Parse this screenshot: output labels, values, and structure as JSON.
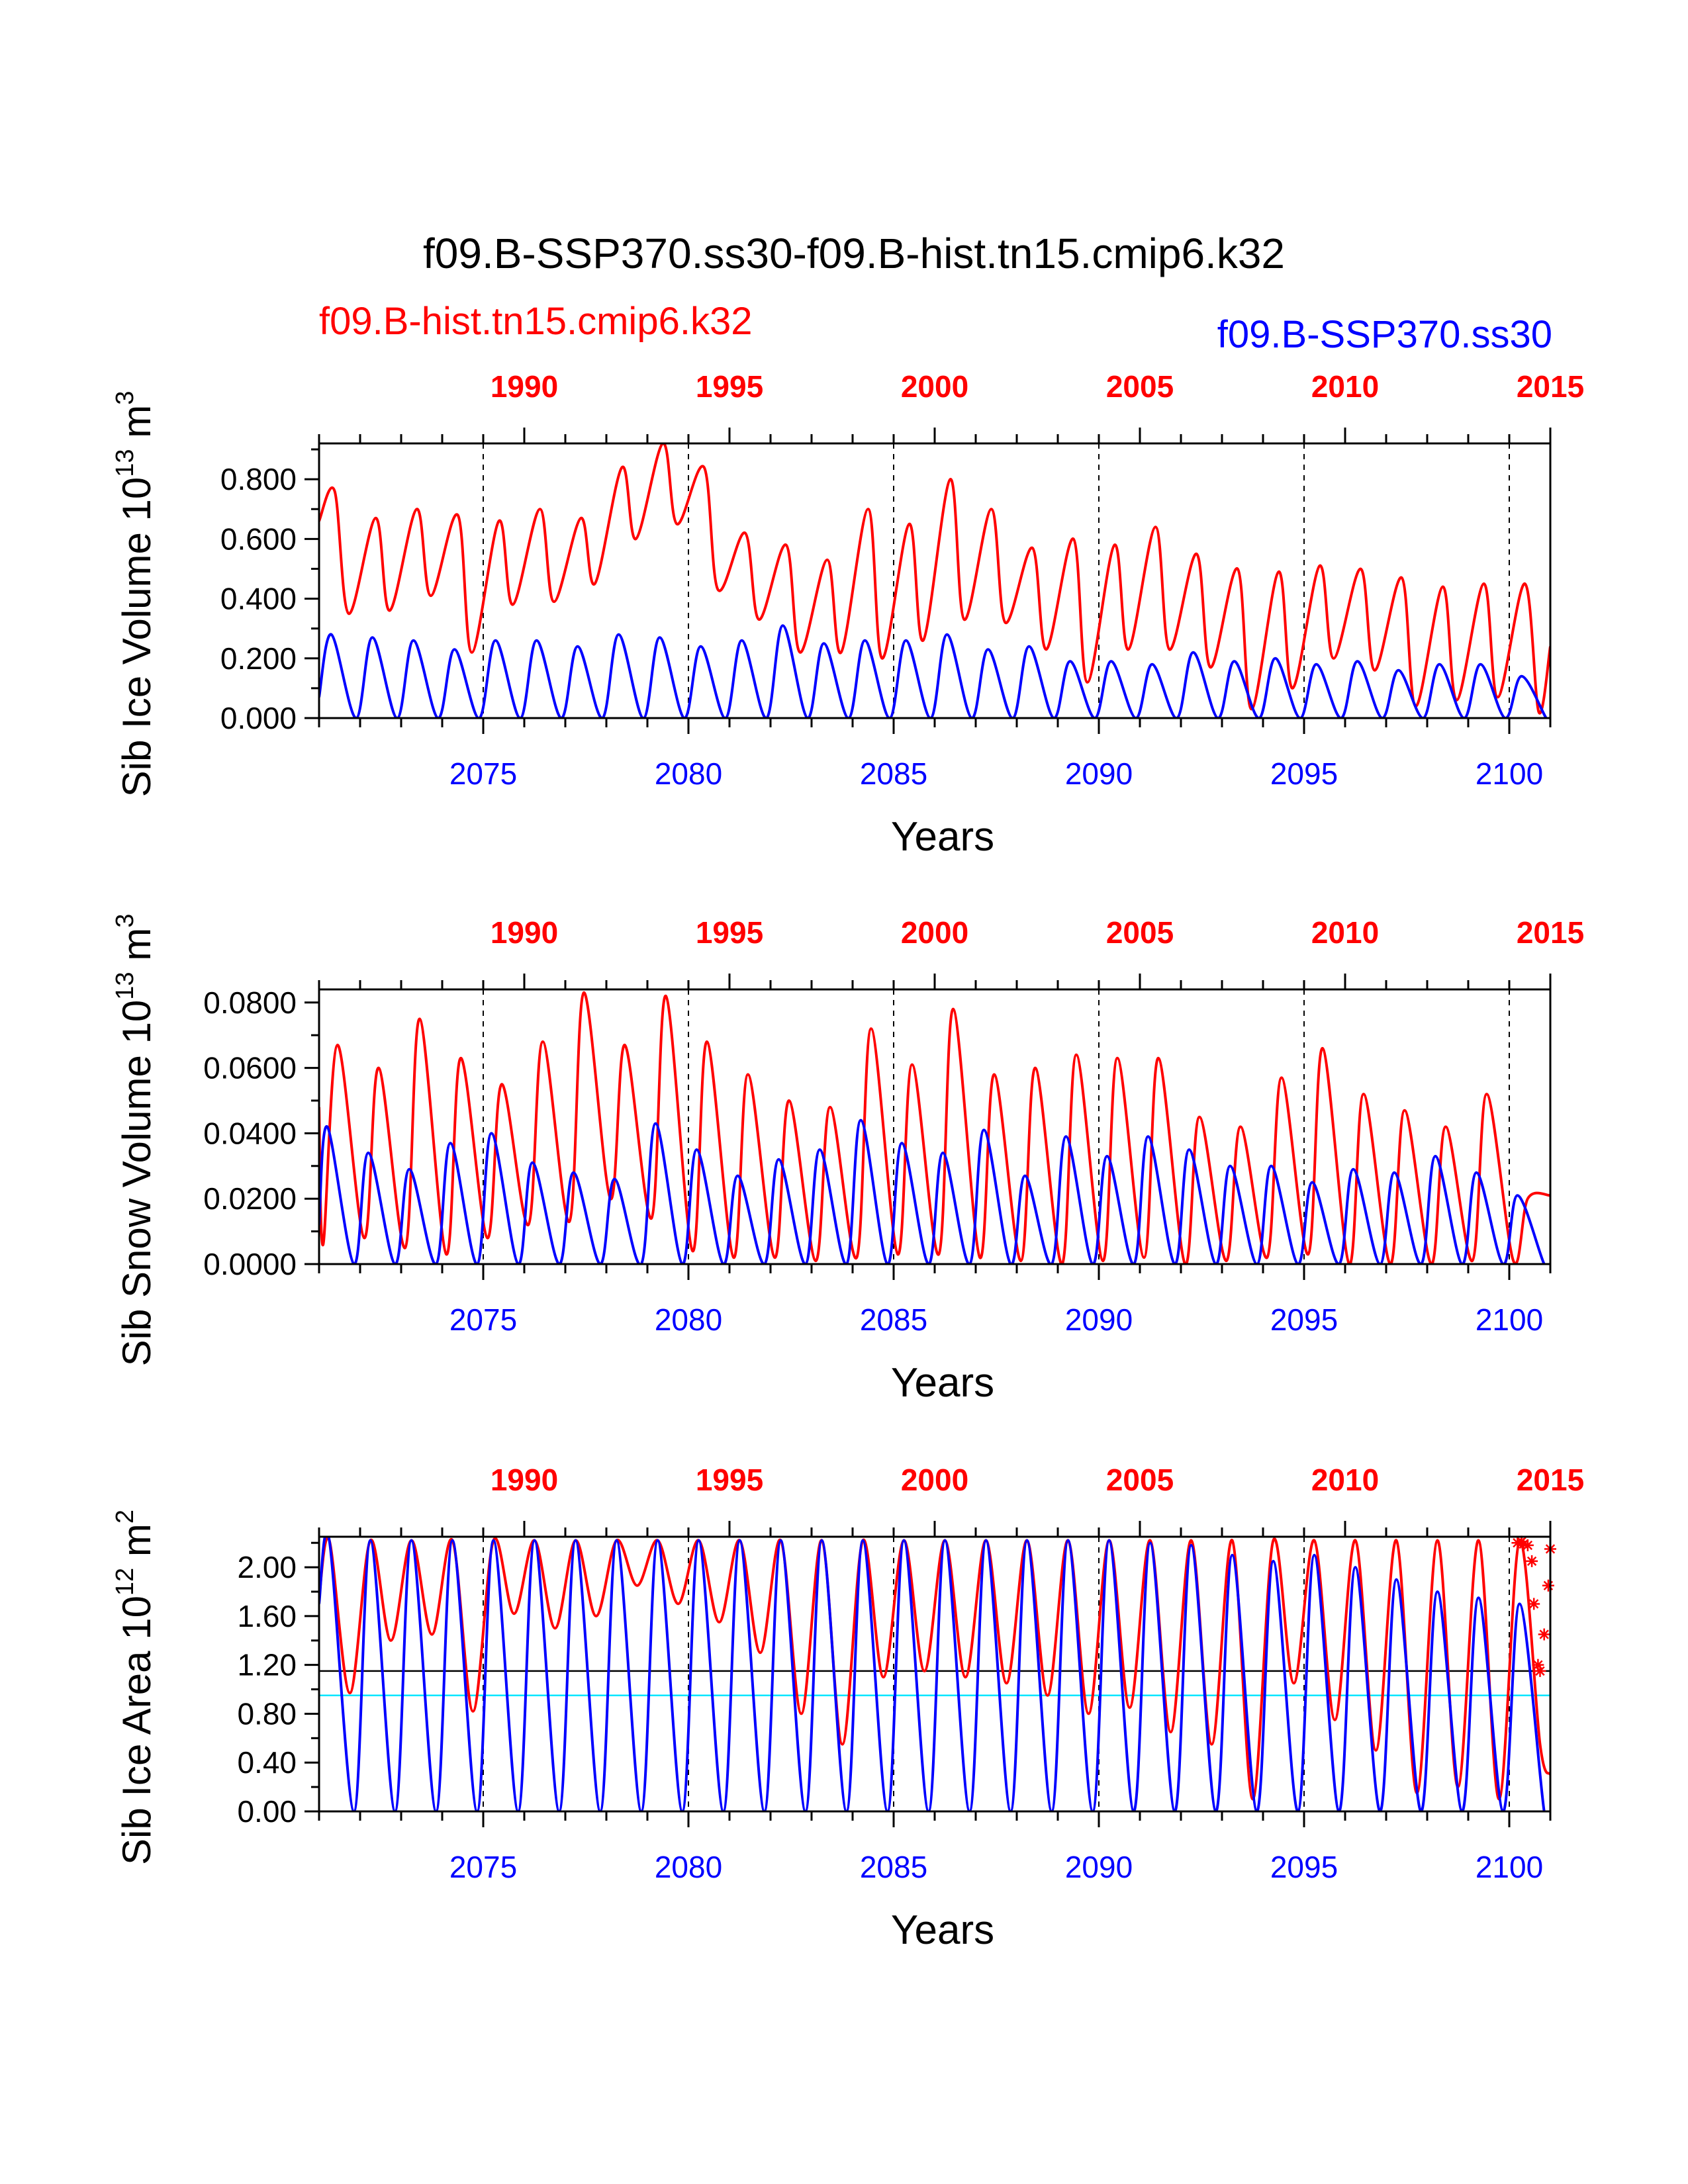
{
  "title": "f09.B-SSP370.ss30-f09.B-hist.tn15.cmip6.k32",
  "legend": {
    "left": {
      "label": "f09.B-hist.tn15.cmip6.k32",
      "color": "#ff0000"
    },
    "right": {
      "label": "f09.B-SSP370.ss30",
      "color": "#0000ff"
    }
  },
  "colors": {
    "hist": "#ff0000",
    "ssp": "#0000ff",
    "ref": "#00e5ff",
    "axis": "#000000"
  },
  "chart_data": [
    {
      "type": "line",
      "id": "ice-volume",
      "ylabel": "Sib Ice Volume 10",
      "ylabel_exp": "13",
      "ylabel_unit": " m",
      "ylabel_unit_exp": "3",
      "xlabel": "Years",
      "xlim": [
        2071,
        2101
      ],
      "ylim": [
        0,
        0.92
      ],
      "yticks": [
        0,
        0.2,
        0.4,
        0.6,
        0.8
      ],
      "yticklabels": [
        "0.000",
        "0.200",
        "0.400",
        "0.600",
        "0.800"
      ],
      "bottom_ticks": [
        2075,
        2080,
        2085,
        2090,
        2095,
        2100
      ],
      "top_ticks": [
        {
          "label": "1990",
          "x": 2076
        },
        {
          "label": "1995",
          "x": 2081
        },
        {
          "label": "2000",
          "x": 2086
        },
        {
          "label": "2005",
          "x": 2091
        },
        {
          "label": "2010",
          "x": 2096
        },
        {
          "label": "2015",
          "x": 2101
        }
      ],
      "dashed_x": [
        2075,
        2080,
        2085,
        2090,
        2095,
        2100
      ],
      "series": [
        {
          "key": "hist",
          "max": [
            0.76,
            0.67,
            0.7,
            0.68,
            0.66,
            0.7,
            0.67,
            0.84,
            0.92,
            0.84,
            0.62,
            0.58,
            0.53,
            0.7,
            0.65,
            0.8,
            0.7,
            0.57,
            0.6,
            0.58,
            0.64,
            0.55,
            0.5,
            0.49,
            0.51,
            0.5,
            0.47,
            0.44,
            0.45,
            0.45
          ],
          "min": [
            0.35,
            0.36,
            0.41,
            0.22,
            0.38,
            0.39,
            0.45,
            0.6,
            0.65,
            0.43,
            0.33,
            0.22,
            0.22,
            0.2,
            0.26,
            0.33,
            0.32,
            0.23,
            0.12,
            0.23,
            0.23,
            0.17,
            0.03,
            0.1,
            0.2,
            0.16,
            0.04,
            0.06,
            0.07,
            0.02
          ],
          "min_phase": 0.72,
          "max_phase": 0.38,
          "start": 0.66,
          "end": 0.24
        },
        {
          "key": "ssp",
          "max": [
            0.28,
            0.27,
            0.26,
            0.23,
            0.26,
            0.26,
            0.24,
            0.28,
            0.27,
            0.24,
            0.26,
            0.31,
            0.25,
            0.26,
            0.26,
            0.28,
            0.23,
            0.24,
            0.19,
            0.19,
            0.18,
            0.22,
            0.19,
            0.2,
            0.18,
            0.19,
            0.16,
            0.18,
            0.18,
            0.14
          ],
          "min": [
            0,
            0,
            0,
            0,
            0,
            0,
            0,
            0,
            0,
            0,
            0,
            0,
            0,
            0,
            0,
            0,
            0,
            0,
            0,
            0,
            0,
            0,
            0,
            0,
            0,
            0,
            0,
            0,
            0,
            0
          ],
          "min_phase": 0.9,
          "max_phase": 0.3,
          "start": 0.07,
          "end": 0
        },
        {
          "key": "ref",
          "constant": null
        }
      ]
    },
    {
      "type": "line",
      "id": "snow-volume",
      "ylabel": "Sib Snow Volume 10",
      "ylabel_exp": "13",
      "ylabel_unit": " m",
      "ylabel_unit_exp": "3",
      "xlabel": "Years",
      "xlim": [
        2071,
        2101
      ],
      "ylim": [
        0,
        0.084
      ],
      "yticks": [
        0,
        0.02,
        0.04,
        0.06,
        0.08
      ],
      "yticklabels": [
        "0.0000",
        "0.0200",
        "0.0400",
        "0.0600",
        "0.0800"
      ],
      "bottom_ticks": [
        2075,
        2080,
        2085,
        2090,
        2095,
        2100
      ],
      "top_ticks": [
        {
          "label": "1990",
          "x": 2076
        },
        {
          "label": "1995",
          "x": 2081
        },
        {
          "label": "2000",
          "x": 2086
        },
        {
          "label": "2005",
          "x": 2091
        },
        {
          "label": "2010",
          "x": 2096
        },
        {
          "label": "2015",
          "x": 2101
        }
      ],
      "dashed_x": [
        2075,
        2080,
        2085,
        2090,
        2095,
        2100
      ],
      "series": [
        {
          "key": "hist",
          "max": [
            0.067,
            0.06,
            0.075,
            0.063,
            0.055,
            0.068,
            0.083,
            0.067,
            0.082,
            0.068,
            0.058,
            0.05,
            0.048,
            0.072,
            0.061,
            0.078,
            0.058,
            0.06,
            0.064,
            0.063,
            0.063,
            0.045,
            0.042,
            0.057,
            0.066,
            0.052,
            0.047,
            0.042,
            0.052,
            0.02
          ],
          "min": [
            0.006,
            0.008,
            0.005,
            0.003,
            0.008,
            0.012,
            0.013,
            0.02,
            0.014,
            0.004,
            0.002,
            0.002,
            0.001,
            0.002,
            0.003,
            0.003,
            0.002,
            0.001,
            0.0,
            0.001,
            0.002,
            0.0,
            0.001,
            0.002,
            0.003,
            0.0,
            0.0,
            0.0,
            0.001,
            0.001
          ],
          "min_phase": 0.1,
          "max_phase": 0.45,
          "start": 0.048,
          "end": 0.021
        },
        {
          "key": "ssp",
          "max": [
            0.042,
            0.034,
            0.029,
            0.037,
            0.04,
            0.031,
            0.028,
            0.026,
            0.043,
            0.035,
            0.027,
            0.032,
            0.035,
            0.044,
            0.037,
            0.034,
            0.041,
            0.027,
            0.039,
            0.033,
            0.039,
            0.035,
            0.03,
            0.03,
            0.025,
            0.029,
            0.028,
            0.033,
            0.028,
            0.021
          ],
          "min": [
            0,
            0,
            0,
            0,
            0,
            0,
            0,
            0,
            0,
            0,
            0,
            0,
            0,
            0,
            0,
            0,
            0,
            0,
            0,
            0,
            0,
            0,
            0,
            0,
            0,
            0,
            0,
            0,
            0,
            0
          ],
          "min_phase": 0.85,
          "max_phase": 0.2,
          "start": 0.012,
          "end": 0
        },
        {
          "key": "ref",
          "constant": null
        }
      ]
    },
    {
      "type": "line",
      "id": "ice-area",
      "ylabel": "Sib Ice Area 10",
      "ylabel_exp": "12",
      "ylabel_unit": " m",
      "ylabel_unit_exp": "2",
      "xlabel": "Years",
      "xlim": [
        2071,
        2101
      ],
      "ylim": [
        0,
        2.25
      ],
      "yticks": [
        0,
        0.4,
        0.8,
        1.2,
        1.6,
        2.0
      ],
      "yticklabels": [
        "0.00",
        "0.40",
        "0.80",
        "1.20",
        "1.60",
        "2.00"
      ],
      "bottom_ticks": [
        2075,
        2080,
        2085,
        2090,
        2095,
        2100
      ],
      "top_ticks": [
        {
          "label": "1990",
          "x": 2076
        },
        {
          "label": "1995",
          "x": 2081
        },
        {
          "label": "2000",
          "x": 2086
        },
        {
          "label": "2005",
          "x": 2091
        },
        {
          "label": "2010",
          "x": 2096
        },
        {
          "label": "2015",
          "x": 2101
        }
      ],
      "dashed_x": [
        2075,
        2080,
        2085,
        2090,
        2095,
        2100
      ],
      "hlines": [
        {
          "y": 1.15,
          "color": "#000000"
        },
        {
          "y": 0.95,
          "color": "#00e5ff"
        },
        {
          "y": 2.25,
          "color": "#000000"
        }
      ],
      "series": [
        {
          "key": "hist",
          "max": [
            2.22,
            2.22,
            2.22,
            2.22,
            2.22,
            2.22,
            2.22,
            2.22,
            2.22,
            2.22,
            2.22,
            2.22,
            2.22,
            2.22,
            2.22,
            2.22,
            2.22,
            2.22,
            2.22,
            2.22,
            2.22,
            2.22,
            2.22,
            2.22,
            2.22,
            2.22,
            2.22,
            2.22,
            2.22,
            2.22
          ],
          "min": [
            0.97,
            1.4,
            1.45,
            0.82,
            1.62,
            1.5,
            1.6,
            1.85,
            1.7,
            1.55,
            1.3,
            0.8,
            0.55,
            1.1,
            1.15,
            1.1,
            1.05,
            0.95,
            0.8,
            0.85,
            0.65,
            0.55,
            0.1,
            1.05,
            0.75,
            0.5,
            0.15,
            0.2,
            0.1,
            0.55
          ],
          "min_phase": 0.75,
          "max_phase": 0.25,
          "start": 1.75,
          "end": 0.3
        },
        {
          "key": "ssp",
          "max": [
            2.22,
            2.22,
            2.22,
            2.22,
            2.22,
            2.22,
            2.22,
            2.22,
            2.22,
            2.22,
            2.22,
            2.22,
            2.22,
            2.22,
            2.22,
            2.22,
            2.22,
            2.22,
            2.22,
            2.22,
            2.2,
            2.18,
            2.1,
            2.05,
            2.1,
            2.0,
            1.9,
            1.8,
            1.75,
            1.7
          ],
          "min": [
            0,
            0,
            0,
            0,
            0,
            0,
            0,
            0,
            0,
            0,
            0,
            0,
            0,
            0,
            0,
            0,
            0,
            0,
            0,
            0,
            0,
            0,
            0,
            0,
            0,
            0,
            0,
            0,
            0,
            0
          ],
          "min_phase": 0.85,
          "max_phase": 0.25,
          "start": 1.7,
          "end": 0
        },
        {
          "key": "markers",
          "x": [
            2100.2,
            2100.3,
            2100.35,
            2100.45,
            2100.55,
            2100.6,
            2100.7,
            2100.75,
            2100.85,
            2100.95,
            2101.0
          ],
          "y": [
            2.2,
            2.21,
            2.19,
            2.18,
            2.05,
            1.7,
            1.2,
            1.15,
            1.45,
            1.85,
            2.15
          ]
        }
      ]
    }
  ]
}
